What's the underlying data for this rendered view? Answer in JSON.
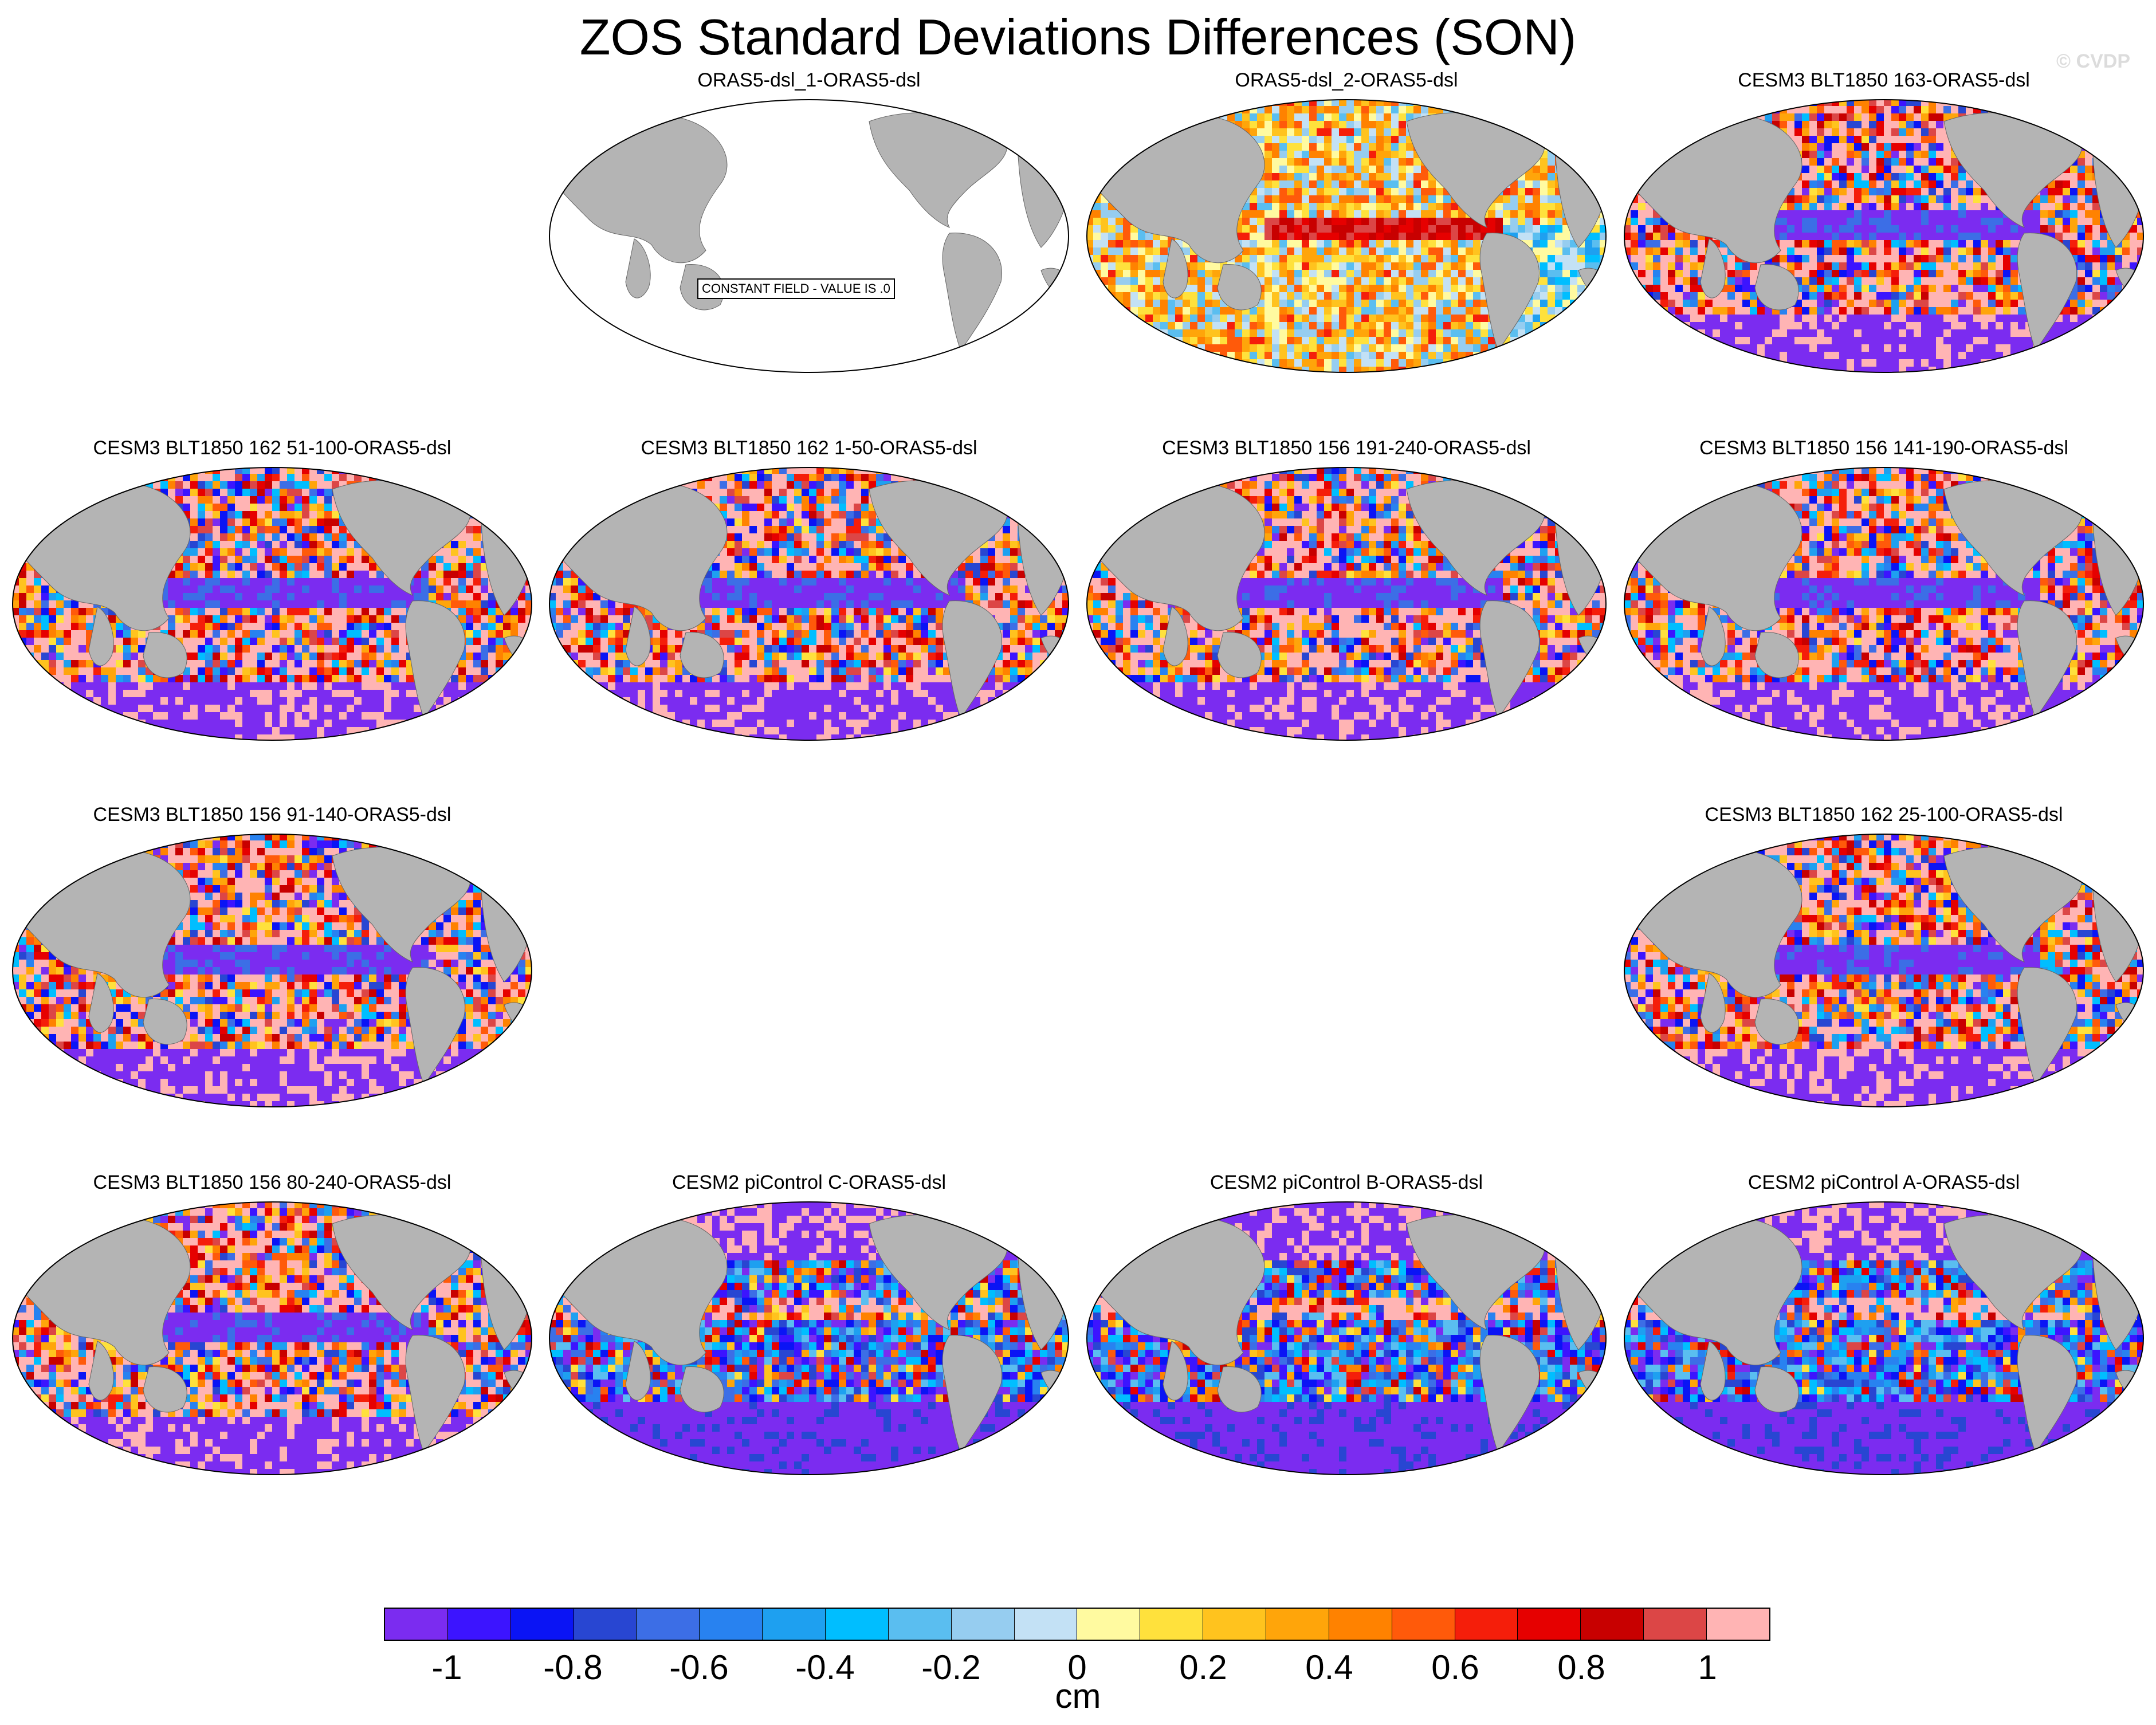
{
  "chart_data": {
    "type": "heatmap",
    "title": "ZOS Standard Deviations Differences (SON)",
    "copyright": "© CVDP",
    "projection": "Robinson, centered on Pacific",
    "units": "cm",
    "colorbar": {
      "range": [
        -1.1,
        1.1
      ],
      "step": 0.1,
      "tick_labels": [
        "-1",
        "-0.8",
        "-0.6",
        "-0.4",
        "-0.2",
        "0",
        "0.2",
        "0.4",
        "0.6",
        "0.8",
        "1"
      ],
      "colors": [
        "#7b2cf0",
        "#3c14ff",
        "#0a14f5",
        "#2846d2",
        "#3c6ee6",
        "#2882f0",
        "#1ea0f0",
        "#00beff",
        "#5abef0",
        "#96cdf0",
        "#c3e1f5",
        "#fffaa0",
        "#ffe13c",
        "#ffc31e",
        "#ffa50a",
        "#ff8200",
        "#ff5a0a",
        "#f51e0a",
        "#e60000",
        "#c80000",
        "#dc4646",
        "#ffb4b4"
      ]
    },
    "panels": [
      {
        "title": "ORAS5-dsl_1-ORAS5-dsl",
        "note": "CONSTANT FIELD - VALUE IS .0",
        "pattern": "constant"
      },
      {
        "title": "ORAS5-dsl_2-ORAS5-dsl",
        "pattern": "oras"
      },
      {
        "title": "CESM3 BLT1850 163-ORAS5-dsl",
        "pattern": "cesm3"
      },
      {
        "title": "CESM3 BLT1850 162 51-100-ORAS5-dsl",
        "pattern": "cesm3"
      },
      {
        "title": "CESM3 BLT1850 162 1-50-ORAS5-dsl",
        "pattern": "cesm3"
      },
      {
        "title": "CESM3 BLT1850 156 191-240-ORAS5-dsl",
        "pattern": "cesm3"
      },
      {
        "title": "CESM3 BLT1850 156 141-190-ORAS5-dsl",
        "pattern": "cesm3"
      },
      {
        "title": "CESM3 BLT1850 156 91-140-ORAS5-dsl",
        "pattern": "cesm3"
      },
      {
        "title": "CESM3 BLT1850 162 25-100-ORAS5-dsl",
        "pattern": "cesm3"
      },
      {
        "title": "CESM3 BLT1850 156 80-240-ORAS5-dsl",
        "pattern": "cesm3"
      },
      {
        "title": "CESM2 piControl C-ORAS5-dsl",
        "pattern": "cesm2"
      },
      {
        "title": "CESM2 piControl B-ORAS5-dsl",
        "pattern": "cesm2"
      },
      {
        "title": "CESM2 piControl A-ORAS5-dsl",
        "pattern": "cesm2"
      }
    ]
  }
}
